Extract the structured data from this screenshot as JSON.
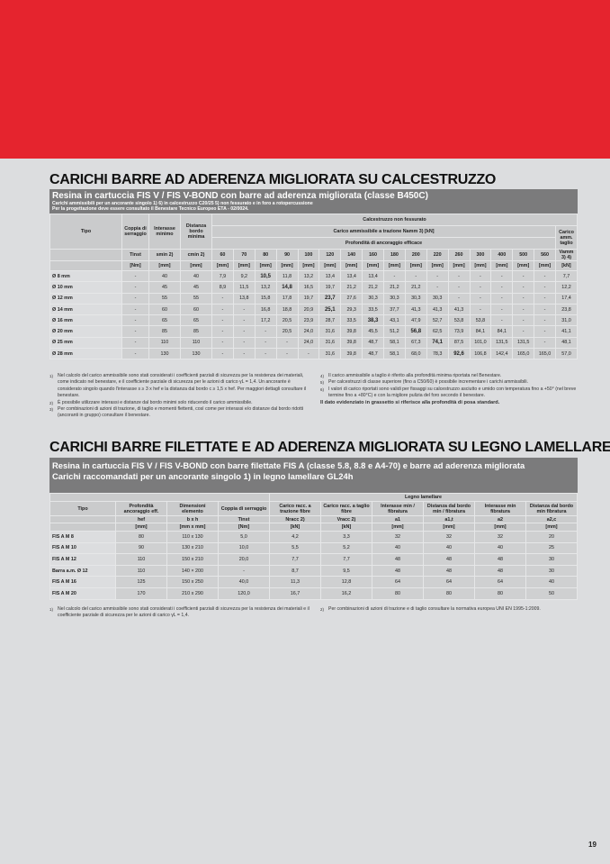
{
  "colors": {
    "brand_red": "#e5242e",
    "banner_grey": "#7b7b7c",
    "page_bg": "#dcdddf"
  },
  "section1": {
    "title": "CARICHI BARRE AD ADERENZA MIGLIORATA SU CALCESTRUZZO",
    "banner_title": "Resina in cartuccia FIS V / FIS V-BOND con barre ad aderenza migliorata (classe B450C)",
    "banner_line1": "Carichi ammissibili per un ancorante singolo 1) 6) in calcestruzzo C20/25 5) non fessurato e in foro a rotopercussione",
    "banner_line2": "Per la progettazione deve essere consultato il Benestare Tecnico Europeo ETA - 02/0024.",
    "header": {
      "tipo": "Tipo",
      "coppia": "Coppia di serraggio",
      "interasse": "Interasse minimo",
      "distanza": "Distanza bordo minima",
      "group": "Calcestruzzo non fessurato",
      "tension": "Carico ammissibile a trazione Namm 3) [kN]",
      "depth": "Profondità di ancoraggio efficace",
      "shear": "Carico amm. taglio",
      "sym_coppia": "Tinst",
      "sym_interasse": "smin 2)",
      "sym_distanza": "cmin 2)",
      "sym_shear": "Vamm 3) 4)",
      "unit_coppia": "[Nm]",
      "unit_mm": "[mm]",
      "unit_kn": "[kN]",
      "depths": [
        "60",
        "70",
        "80",
        "90",
        "100",
        "120",
        "140",
        "160",
        "180",
        "200",
        "220",
        "260",
        "300",
        "400",
        "500",
        "560"
      ]
    },
    "rows": [
      {
        "type": "Ø 8 mm",
        "coppia": "-",
        "s": "40",
        "c": "40",
        "v": [
          "7,9",
          "9,2",
          "10,5",
          "11,8",
          "13,2",
          "13,4",
          "13,4",
          "13,4",
          "-",
          "-",
          "-",
          "-",
          "-",
          "-",
          "-",
          "-"
        ],
        "bold": 2,
        "shear": "7,7"
      },
      {
        "type": "Ø 10 mm",
        "coppia": "-",
        "s": "45",
        "c": "45",
        "v": [
          "8,9",
          "11,5",
          "13,2",
          "14,8",
          "16,5",
          "19,7",
          "21,2",
          "21,2",
          "21,2",
          "21,2",
          "-",
          "-",
          "-",
          "-",
          "-",
          "-"
        ],
        "bold": 3,
        "shear": "12,2"
      },
      {
        "type": "Ø 12 mm",
        "coppia": "-",
        "s": "55",
        "c": "55",
        "v": [
          "-",
          "13,8",
          "15,8",
          "17,8",
          "19,7",
          "23,7",
          "27,6",
          "30,3",
          "30,3",
          "30,3",
          "30,3",
          "-",
          "-",
          "-",
          "-",
          "-"
        ],
        "bold": 5,
        "shear": "17,4"
      },
      {
        "type": "Ø 14 mm",
        "coppia": "-",
        "s": "60",
        "c": "60",
        "v": [
          "-",
          "-",
          "16,8",
          "18,8",
          "20,9",
          "25,1",
          "29,3",
          "33,5",
          "37,7",
          "41,3",
          "41,3",
          "41,3",
          "-",
          "-",
          "-",
          "-"
        ],
        "bold": 5,
        "shear": "23,8"
      },
      {
        "type": "Ø 16 mm",
        "coppia": "-",
        "s": "65",
        "c": "65",
        "v": [
          "-",
          "-",
          "17,2",
          "20,5",
          "23,9",
          "28,7",
          "33,5",
          "38,3",
          "43,1",
          "47,9",
          "52,7",
          "53,8",
          "53,8",
          "-",
          "-",
          "-"
        ],
        "bold": 7,
        "shear": "31,0"
      },
      {
        "type": "Ø 20 mm",
        "coppia": "-",
        "s": "85",
        "c": "85",
        "v": [
          "-",
          "-",
          "-",
          "20,5",
          "24,0",
          "31,6",
          "39,8",
          "45,5",
          "51,2",
          "56,8",
          "62,5",
          "73,9",
          "84,1",
          "84,1",
          "-",
          "-"
        ],
        "bold": 9,
        "shear": "41,1"
      },
      {
        "type": "Ø 25 mm",
        "coppia": "-",
        "s": "110",
        "c": "110",
        "v": [
          "-",
          "-",
          "-",
          "-",
          "24,0",
          "31,6",
          "39,8",
          "48,7",
          "58,1",
          "67,3",
          "74,1",
          "87,5",
          "101,0",
          "131,5",
          "131,5",
          "-"
        ],
        "bold": 10,
        "shear": "48,1"
      },
      {
        "type": "Ø 28 mm",
        "coppia": "-",
        "s": "130",
        "c": "130",
        "v": [
          "-",
          "-",
          "-",
          "-",
          "-",
          "31,6",
          "39,8",
          "48,7",
          "58,1",
          "68,0",
          "78,3",
          "92,6",
          "106,8",
          "142,4",
          "165,0",
          "165,0"
        ],
        "bold": 11,
        "shear": "57,0"
      }
    ],
    "footnotes_left": [
      {
        "n": "1)",
        "text": "Nel calcolo del carico ammissibile sono stati considerati i coefficienti parziali di sicurezza per la resistenza dei materiali, come indicato nel benestare, e il coefficiente parziale di sicurezza per le azioni di carico γL = 1,4. Un ancorante è considerato singolo quando l'interasse s ≥ 3 x hef e la distanza dal bordo c ≥ 1,5 x hef. Per maggiori dettagli consultare il benestare."
      },
      {
        "n": "2)",
        "text": "È possibile utilizzare interassi e distanze dal bordo minimi solo riducendo il carico ammissibile."
      },
      {
        "n": "3)",
        "text": "Per combinazioni di azioni di trazione, di taglio e momenti flettenti, così come per interassi e/o distanze dal bordo ridotti (ancoranti in gruppo) consultare il benestare."
      }
    ],
    "footnotes_right": [
      {
        "n": "4)",
        "text": "Il carico ammissibile a taglio è riferito alla profondità minima riportata nel Benestare."
      },
      {
        "n": "5)",
        "text": "Per calcestruzzi di classe superiore (fino a C50/60) è possibile incrementare i carichi ammissibili."
      },
      {
        "n": "6)",
        "text": "I valori di carico riportati sono validi per fissaggi su calcestruzzo asciutto e umido con temperatura fino a +50° (nel breve termine fino a +80°C) e con la migliore pulizia del foro secondo il benestare."
      }
    ],
    "note_bold": "Il dato evidenziato in grassetto si riferisce alla profondità di posa standard."
  },
  "section2": {
    "title": "CARICHI BARRE FILETTATE E AD ADERENZA MIGLIORATA SU LEGNO LAMELLARE",
    "banner_line1": "Resina in cartuccia FIS V / FIS V-BOND con barre filettate FIS A (classe 5.8, 8.8 e A4-70) e barre ad aderenza migliorata",
    "banner_line2": "Carichi raccomandati per un ancorante singolo 1) in legno lamellare GL24h",
    "group": "Legno lamellare",
    "columns": [
      {
        "label": "Tipo",
        "sym": "",
        "unit": ""
      },
      {
        "label": "Profondità ancoraggio eff.",
        "sym": "hef",
        "unit": "[mm]"
      },
      {
        "label": "Dimensioni elemento",
        "sym": "b x h",
        "unit": "[mm x mm]"
      },
      {
        "label": "Coppia di serraggio",
        "sym": "Tinst",
        "unit": "[Nm]"
      },
      {
        "label": "Carico racc. a trazione fibre",
        "sym": "Nracc 2)",
        "unit": "[kN]"
      },
      {
        "label": "Carico racc. a taglio fibre",
        "sym": "Vracc 2)",
        "unit": "[kN]"
      },
      {
        "label": "Interasse min / fibratura",
        "sym": "a1",
        "unit": "[mm]"
      },
      {
        "label": "Distanza dal bordo min / fibratura",
        "sym": "a1,t",
        "unit": "[mm]"
      },
      {
        "label": "Interasse min fibratura",
        "sym": "a2",
        "unit": "[mm]"
      },
      {
        "label": "Distanza dal bordo min fibratura",
        "sym": "a2,c",
        "unit": "[mm]"
      }
    ],
    "rows": [
      [
        "FIS A M 8",
        "80",
        "110 x 130",
        "5,0",
        "4,2",
        "3,3",
        "32",
        "32",
        "32",
        "20"
      ],
      [
        "FIS A M 10",
        "90",
        "130 x 210",
        "10,0",
        "5,5",
        "5,2",
        "40",
        "40",
        "40",
        "25"
      ],
      [
        "FIS A M 12",
        "110",
        "150 x 210",
        "20,0",
        "7,7",
        "7,7",
        "48",
        "48",
        "48",
        "30"
      ],
      [
        "Barra a.m. Ø 12",
        "110",
        "140 × 200",
        "-",
        "8,7",
        "9,5",
        "48",
        "48",
        "48",
        "30"
      ],
      [
        "FIS A M 16",
        "125",
        "150 x 250",
        "40,0",
        "11,3",
        "12,8",
        "64",
        "64",
        "64",
        "40"
      ],
      [
        "FIS A M 20",
        "170",
        "210 x 290",
        "120,0",
        "16,7",
        "16,2",
        "80",
        "80",
        "80",
        "50"
      ]
    ],
    "footnote1": {
      "n": "1)",
      "text": "Nel calcolo del carico ammissibile sono stati considerati i coefficienti parziali di sicurezza per la resistenza dei materiali e il coefficiente parziale di sicurezza per le azioni di carico γL = 1,4."
    },
    "footnote2": {
      "n": "2)",
      "text": "Per combinazioni di azioni di trazione e di taglio consultare la normativa europea UNI EN 1995-1:2009."
    }
  },
  "page_number": "19"
}
